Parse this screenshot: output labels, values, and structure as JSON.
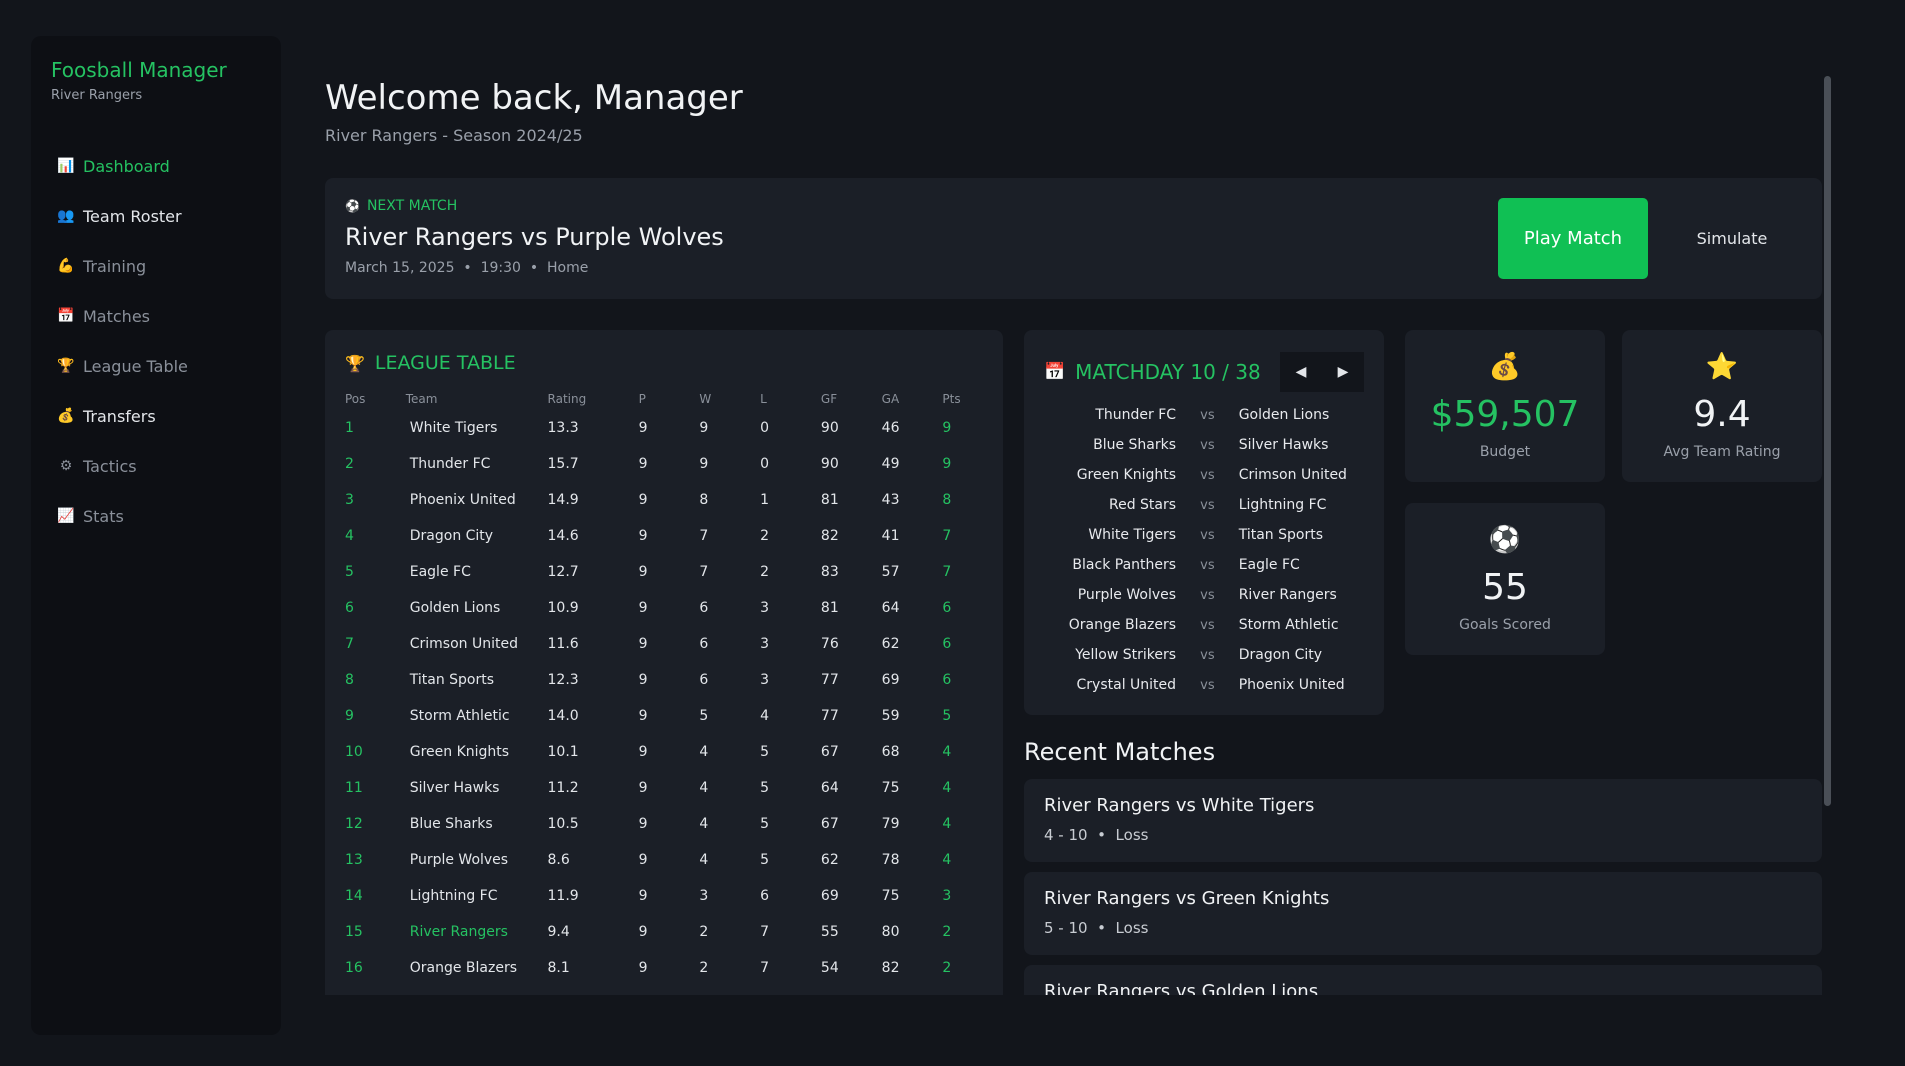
{
  "sidebar": {
    "brand": "Foosball Manager",
    "subtitle": "River Rangers",
    "items": [
      {
        "label": "Dashboard",
        "icon": "📊"
      },
      {
        "label": "Team Roster",
        "icon": "👥"
      },
      {
        "label": "Training",
        "icon": "💪"
      },
      {
        "label": "Matches",
        "icon": "📅"
      },
      {
        "label": "League Table",
        "icon": "🏆"
      },
      {
        "label": "Transfers",
        "icon": "💰"
      },
      {
        "label": "Tactics",
        "icon": "⚙"
      },
      {
        "label": "Stats",
        "icon": "📈"
      }
    ]
  },
  "header": {
    "title": "Welcome back, Manager",
    "subtitle": "River Rangers - Season 2024/25"
  },
  "next_match": {
    "label": "NEXT MATCH",
    "icon": "⚽",
    "title": "River Rangers vs Purple Wolves",
    "date": "March 15, 2025",
    "sep1": "•",
    "time": "19:30",
    "sep2": "•",
    "venue": "Home",
    "play_label": "Play Match",
    "simulate_label": "Simulate"
  },
  "league": {
    "title": "LEAGUE TABLE",
    "icon": "🏆",
    "headers": [
      "Pos",
      "Team",
      "Rating",
      "P",
      "W",
      "L",
      "GF",
      "GA",
      "Pts"
    ],
    "rows": [
      [
        "1",
        "White Tigers",
        "13.3",
        "9",
        "9",
        "0",
        "90",
        "46",
        "9"
      ],
      [
        "2",
        "Thunder FC",
        "15.7",
        "9",
        "9",
        "0",
        "90",
        "49",
        "9"
      ],
      [
        "3",
        "Phoenix United",
        "14.9",
        "9",
        "8",
        "1",
        "81",
        "43",
        "8"
      ],
      [
        "4",
        "Dragon City",
        "14.6",
        "9",
        "7",
        "2",
        "82",
        "41",
        "7"
      ],
      [
        "5",
        "Eagle FC",
        "12.7",
        "9",
        "7",
        "2",
        "83",
        "57",
        "7"
      ],
      [
        "6",
        "Golden Lions",
        "10.9",
        "9",
        "6",
        "3",
        "81",
        "64",
        "6"
      ],
      [
        "7",
        "Crimson United",
        "11.6",
        "9",
        "6",
        "3",
        "76",
        "62",
        "6"
      ],
      [
        "8",
        "Titan Sports",
        "12.3",
        "9",
        "6",
        "3",
        "77",
        "69",
        "6"
      ],
      [
        "9",
        "Storm Athletic",
        "14.0",
        "9",
        "5",
        "4",
        "77",
        "59",
        "5"
      ],
      [
        "10",
        "Green Knights",
        "10.1",
        "9",
        "4",
        "5",
        "67",
        "68",
        "4"
      ],
      [
        "11",
        "Silver Hawks",
        "11.2",
        "9",
        "4",
        "5",
        "64",
        "75",
        "4"
      ],
      [
        "12",
        "Blue Sharks",
        "10.5",
        "9",
        "4",
        "5",
        "67",
        "79",
        "4"
      ],
      [
        "13",
        "Purple Wolves",
        "8.6",
        "9",
        "4",
        "5",
        "62",
        "78",
        "4"
      ],
      [
        "14",
        "Lightning FC",
        "11.9",
        "9",
        "3",
        "6",
        "69",
        "75",
        "3"
      ],
      [
        "15",
        "River Rangers",
        "9.4",
        "9",
        "2",
        "7",
        "55",
        "80",
        "2"
      ],
      [
        "16",
        "Orange Blazers",
        "8.1",
        "9",
        "2",
        "7",
        "54",
        "82",
        "2"
      ]
    ],
    "highlight_team": "River Rangers"
  },
  "matchday": {
    "title": "MATCHDAY 10 / 38",
    "icon": "📅",
    "prev": "◀",
    "next": "▶",
    "vs": "vs",
    "fixtures": [
      [
        "Thunder FC",
        "Golden Lions"
      ],
      [
        "Blue Sharks",
        "Silver Hawks"
      ],
      [
        "Green Knights",
        "Crimson United"
      ],
      [
        "Red Stars",
        "Lightning FC"
      ],
      [
        "White Tigers",
        "Titan Sports"
      ],
      [
        "Black Panthers",
        "Eagle FC"
      ],
      [
        "Purple Wolves",
        "River Rangers"
      ],
      [
        "Orange Blazers",
        "Storm Athletic"
      ],
      [
        "Yellow Strikers",
        "Dragon City"
      ],
      [
        "Crystal United",
        "Phoenix United"
      ]
    ]
  },
  "stats": {
    "budget": {
      "icon": "💰",
      "value": "$59,507",
      "label": "Budget"
    },
    "rating": {
      "icon": "⭐",
      "value": "9.4",
      "label": "Avg Team Rating"
    },
    "goals": {
      "icon": "⚽",
      "value": "55",
      "label": "Goals Scored"
    }
  },
  "recent": {
    "title": "Recent Matches",
    "sep": "•",
    "items": [
      {
        "title": "River Rangers vs White Tigers",
        "score": "4 - 10",
        "result": "Loss"
      },
      {
        "title": "River Rangers vs Green Knights",
        "score": "5 - 10",
        "result": "Loss"
      },
      {
        "title": "River Rangers vs Golden Lions",
        "score": "",
        "result": ""
      }
    ]
  },
  "colors": {
    "accent": "#25c262",
    "card": "#1b1f27",
    "bg": "#12151b"
  }
}
